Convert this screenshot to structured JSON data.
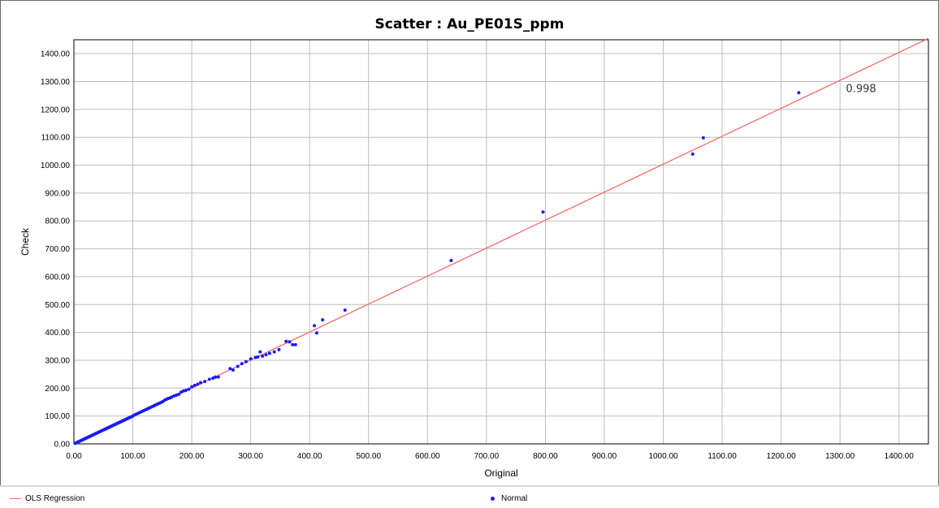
{
  "chart_data": {
    "type": "scatter",
    "title": "Scatter : Au_PE01S_ppm",
    "xlabel": "Original",
    "ylabel": "Check",
    "xlim": [
      0,
      1450
    ],
    "ylim": [
      0,
      1450
    ],
    "x_ticks": [
      "0.00",
      "100.00",
      "200.00",
      "300.00",
      "400.00",
      "500.00",
      "600.00",
      "700.00",
      "800.00",
      "900.00",
      "1000.00",
      "1100.00",
      "1200.00",
      "1300.00",
      "1400.00"
    ],
    "y_ticks": [
      "0.00",
      "100.00",
      "200.00",
      "300.00",
      "400.00",
      "500.00",
      "600.00",
      "700.00",
      "800.00",
      "900.00",
      "1000.00",
      "1100.00",
      "1200.00",
      "1300.00",
      "1400.00"
    ],
    "grid": true,
    "legend_position": "bottom",
    "annotation": "0.998",
    "series": [
      {
        "name": "Normal",
        "marker": "dot",
        "color": "#1a1aff",
        "points": [
          [
            2,
            2
          ],
          [
            4,
            4
          ],
          [
            6,
            6
          ],
          [
            8,
            8
          ],
          [
            10,
            10
          ],
          [
            12,
            12
          ],
          [
            14,
            14
          ],
          [
            16,
            16
          ],
          [
            18,
            18
          ],
          [
            20,
            20
          ],
          [
            22,
            22
          ],
          [
            24,
            24
          ],
          [
            26,
            26
          ],
          [
            28,
            28
          ],
          [
            30,
            30
          ],
          [
            32,
            32
          ],
          [
            34,
            34
          ],
          [
            36,
            36
          ],
          [
            38,
            38
          ],
          [
            40,
            40
          ],
          [
            42,
            42
          ],
          [
            44,
            44
          ],
          [
            46,
            46
          ],
          [
            48,
            48
          ],
          [
            50,
            50
          ],
          [
            52,
            52
          ],
          [
            54,
            54
          ],
          [
            56,
            56
          ],
          [
            58,
            58
          ],
          [
            60,
            60
          ],
          [
            62,
            62
          ],
          [
            64,
            64
          ],
          [
            66,
            66
          ],
          [
            68,
            68
          ],
          [
            70,
            70
          ],
          [
            72,
            72
          ],
          [
            74,
            74
          ],
          [
            76,
            76
          ],
          [
            78,
            78
          ],
          [
            80,
            80
          ],
          [
            82,
            82
          ],
          [
            84,
            84
          ],
          [
            86,
            86
          ],
          [
            88,
            88
          ],
          [
            90,
            90
          ],
          [
            92,
            92
          ],
          [
            94,
            94
          ],
          [
            96,
            96
          ],
          [
            98,
            98
          ],
          [
            100,
            100
          ],
          [
            103,
            104
          ],
          [
            106,
            107
          ],
          [
            109,
            110
          ],
          [
            112,
            113
          ],
          [
            115,
            116
          ],
          [
            118,
            119
          ],
          [
            121,
            122
          ],
          [
            124,
            125
          ],
          [
            127,
            128
          ],
          [
            130,
            131
          ],
          [
            133,
            134
          ],
          [
            136,
            137
          ],
          [
            139,
            140
          ],
          [
            142,
            143
          ],
          [
            145,
            146
          ],
          [
            148,
            149
          ],
          [
            151,
            152
          ],
          [
            154,
            157
          ],
          [
            157,
            160
          ],
          [
            160,
            163
          ],
          [
            163,
            165
          ],
          [
            166,
            168
          ],
          [
            170,
            172
          ],
          [
            174,
            175
          ],
          [
            178,
            178
          ],
          [
            182,
            186
          ],
          [
            186,
            190
          ],
          [
            190,
            192
          ],
          [
            195,
            196
          ],
          [
            200,
            205
          ],
          [
            205,
            210
          ],
          [
            210,
            214
          ],
          [
            215,
            220
          ],
          [
            222,
            224
          ],
          [
            230,
            232
          ],
          [
            236,
            236
          ],
          [
            240,
            240
          ],
          [
            245,
            240
          ],
          [
            265,
            270
          ],
          [
            270,
            265
          ],
          [
            278,
            278
          ],
          [
            285,
            288
          ],
          [
            292,
            295
          ],
          [
            300,
            305
          ],
          [
            308,
            310
          ],
          [
            312,
            312
          ],
          [
            316,
            330
          ],
          [
            320,
            315
          ],
          [
            326,
            320
          ],
          [
            332,
            325
          ],
          [
            340,
            330
          ],
          [
            348,
            338
          ],
          [
            360,
            368
          ],
          [
            366,
            366
          ],
          [
            371,
            356
          ],
          [
            376,
            356
          ],
          [
            408,
            424
          ],
          [
            412,
            398
          ],
          [
            422,
            445
          ],
          [
            460,
            480
          ],
          [
            640,
            658
          ],
          [
            796,
            832
          ],
          [
            1050,
            1040
          ],
          [
            1068,
            1098
          ],
          [
            1230,
            1260
          ]
        ]
      },
      {
        "name": "OLS Regression",
        "type": "line",
        "color": "#f26b6b",
        "points": [
          [
            0,
            0
          ],
          [
            1450,
            1455
          ]
        ]
      }
    ]
  }
}
